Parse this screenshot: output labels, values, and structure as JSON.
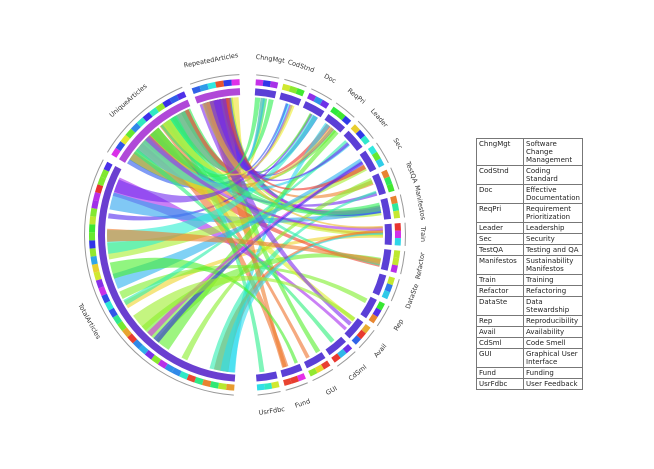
{
  "nodes": [
    {
      "label": "ChngMgt"
    },
    {
      "label": "CodStnd"
    },
    {
      "label": "Doc"
    },
    {
      "label": "ReqPri"
    },
    {
      "label": "Leader"
    },
    {
      "label": "Sec"
    },
    {
      "label": "TestQA"
    },
    {
      "label": "Manifestos"
    },
    {
      "label": "Train"
    },
    {
      "label": "Refactor"
    },
    {
      "label": "DataSte"
    },
    {
      "label": "Rep"
    },
    {
      "label": "Avail"
    },
    {
      "label": "CdSml"
    },
    {
      "label": "GUI"
    },
    {
      "label": "Fund"
    },
    {
      "label": "UsrFdbc"
    },
    {
      "label": "TotalArticles"
    },
    {
      "label": "UniqueArticles"
    },
    {
      "label": "RepeatedArticles"
    }
  ],
  "table": {
    "rows": [
      [
        "ChngMgt",
        "Software Change Management"
      ],
      [
        "CodStnd",
        "Coding Standard"
      ],
      [
        "Doc",
        "Effective Documentation"
      ],
      [
        "ReqPri",
        "Requirement Prioritization"
      ],
      [
        "Leader",
        "Leadership"
      ],
      [
        "Sec",
        "Security"
      ],
      [
        "TestQA",
        "Testing and QA"
      ],
      [
        "Manifestos",
        "Sustainability Manifestos"
      ],
      [
        "Train",
        "Training"
      ],
      [
        "Refactor",
        "Refactoring"
      ],
      [
        "DataSte",
        "Data Stewardship"
      ],
      [
        "Rep",
        "Reproducibility"
      ],
      [
        "Avail",
        "Availability"
      ],
      [
        "CdSml",
        "Code Smell"
      ],
      [
        "GUI",
        "Graphical User Interface"
      ],
      [
        "Fund",
        "Funding"
      ],
      [
        "UsrFdbc",
        "User Feedback"
      ]
    ]
  }
}
